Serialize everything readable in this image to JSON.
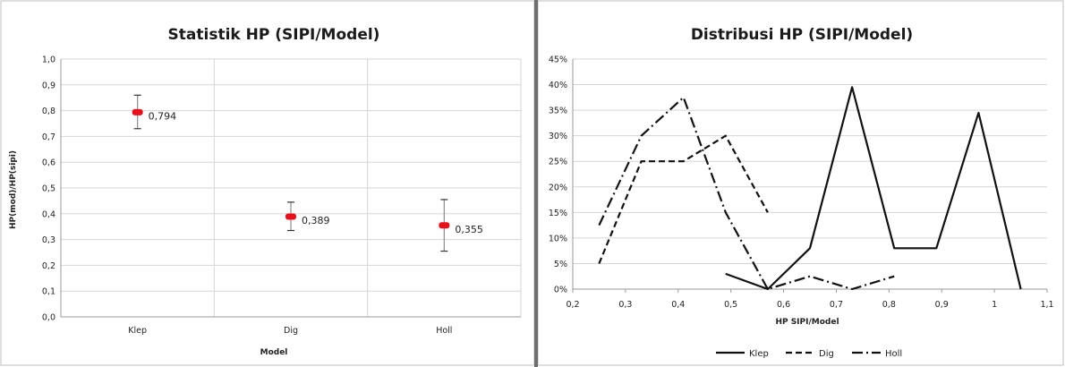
{
  "chart_data": [
    {
      "type": "scatter",
      "title": "Statistik HP (SIPI/Model)",
      "xlabel": "Model",
      "ylabel": "HP(mod)/HP(sipi)",
      "categories": [
        "Klep",
        "Dig",
        "Holl"
      ],
      "values": [
        0.794,
        0.389,
        0.355
      ],
      "errorbars": [
        {
          "low": 0.73,
          "high": 0.86
        },
        {
          "low": 0.335,
          "high": 0.445
        },
        {
          "low": 0.255,
          "high": 0.455
        }
      ],
      "data_labels": [
        "0,794",
        "0,389",
        "0,355"
      ],
      "ylim": [
        0,
        1.0
      ],
      "yticks": [
        "0,0",
        "0,1",
        "0,2",
        "0,3",
        "0,4",
        "0,5",
        "0,6",
        "0,7",
        "0,8",
        "0,9",
        "1,0"
      ],
      "grid": true,
      "marker_color": "#e8101a",
      "errorbar_color": "#8c8c8c"
    },
    {
      "type": "line",
      "title": "Distribusi HP (SIPI/Model)",
      "xlabel": "HP SIPI/Model",
      "ylabel": "",
      "xlim": [
        0.2,
        1.1
      ],
      "ylim": [
        0,
        45
      ],
      "xticks": [
        "0,2",
        "0,3",
        "0,4",
        "0,5",
        "0,6",
        "0,7",
        "0,8",
        "0,9",
        "1",
        "1,1"
      ],
      "yticks": [
        "0%",
        "5%",
        "10%",
        "15%",
        "20%",
        "25%",
        "30%",
        "35%",
        "40%",
        "45%"
      ],
      "grid": true,
      "legend": "bottom",
      "series": [
        {
          "name": "Klep",
          "dash": "solid",
          "x": [
            0.49,
            0.57,
            0.65,
            0.73,
            0.81,
            0.89,
            0.97,
            1.05
          ],
          "y": [
            3,
            0,
            8,
            39.5,
            8,
            8,
            34.5,
            0
          ]
        },
        {
          "name": "Dig",
          "dash": "dashed",
          "x": [
            0.25,
            0.33,
            0.41,
            0.49,
            0.57
          ],
          "y": [
            5,
            25,
            25,
            30,
            15
          ]
        },
        {
          "name": "Holl",
          "dash": "dashdot",
          "x": [
            0.25,
            0.33,
            0.41,
            0.49,
            0.57,
            0.65,
            0.73,
            0.81
          ],
          "y": [
            12.5,
            30,
            37.5,
            15,
            0,
            2.5,
            0,
            2.5
          ]
        }
      ]
    }
  ]
}
